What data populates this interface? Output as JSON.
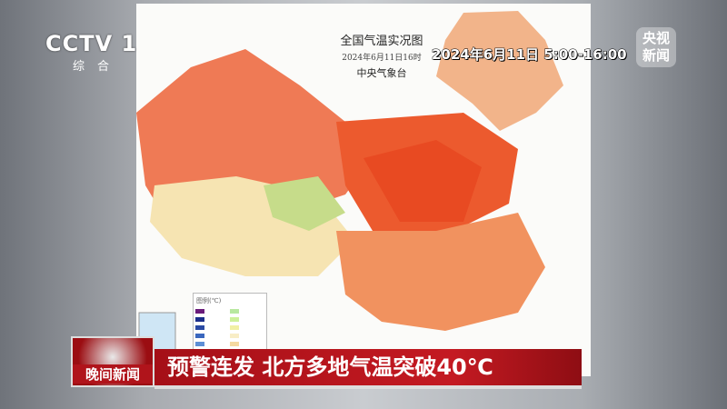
{
  "channel": {
    "logo": "CCTV 1",
    "sub": "综合"
  },
  "watermark": "央视新闻",
  "map": {
    "title": "全国气温实况图",
    "date": "2024年6月11日16时",
    "org": "中央气象台",
    "legend_title": "图例(℃)",
    "legend_colors": [
      "#6a1b7a",
      "#1c2f8a",
      "#2a4aa3",
      "#3a67be",
      "#5d8fd6",
      "#8fc0ec",
      "#b8e8a0",
      "#cdf09a",
      "#f1f0a4",
      "#f8edc6",
      "#f5d9a0",
      "#f2a878"
    ]
  },
  "time_overlay": "2024年6月11日 5:00-16:00",
  "program": "晚间新闻",
  "headline": "预警连发 北方多地气温突破40℃"
}
